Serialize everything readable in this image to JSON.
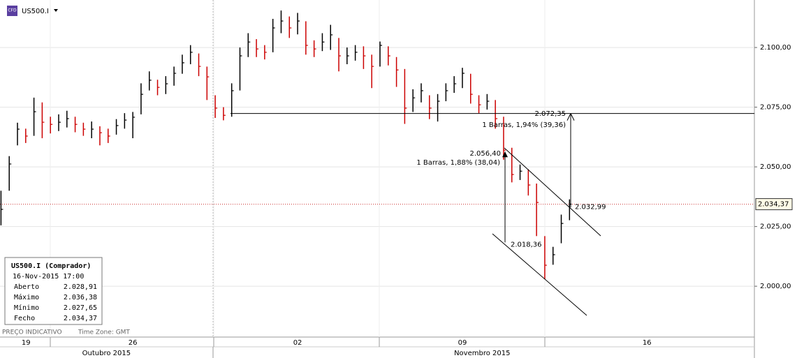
{
  "header": {
    "icon": "CFD",
    "symbol": "US500.I"
  },
  "footer": {
    "note": "PREÇO INDICATIVO",
    "timezone": "Time Zone: GMT"
  },
  "info_box": {
    "title": "US500.I (Comprador)",
    "date": "16-Nov-2015 17:00",
    "rows": [
      [
        "Aberto",
        "2.028,91"
      ],
      [
        "Máximo",
        "2.036,38"
      ],
      [
        "Mínimo",
        "2.027,65"
      ],
      [
        "Fecho",
        "2.034,37"
      ]
    ]
  },
  "chart_data": {
    "type": "ohlc",
    "x": [
      3.5,
      3.75,
      4,
      4.25,
      4.5,
      4.75,
      5,
      5.25,
      5.5,
      5.75,
      6,
      6.25,
      6.5,
      6.75,
      7,
      7.25,
      7.5,
      7.75,
      8,
      8.25,
      8.5,
      8.75,
      9,
      9.25,
      9.5,
      9.75,
      10,
      10.25,
      10.5,
      10.75,
      11,
      11.25,
      11.5,
      11.75,
      12,
      12.25,
      12.5,
      12.75,
      13,
      13.25,
      13.5,
      13.75,
      14,
      14.25,
      14.5,
      14.75,
      15,
      15.25,
      15.5,
      15.75,
      16,
      16.25,
      16.5,
      16.75,
      17,
      17.25,
      17.5,
      17.75,
      18,
      18.25,
      18.5,
      18.75,
      19,
      19.25,
      19.5,
      19.75,
      20,
      20.25,
      20.5,
      20.75
    ],
    "close": [
      2032.2,
      2051.2,
      2065.8,
      2062.9,
      2073.1,
      2068.7,
      2067.8,
      2068.7,
      2070.2,
      2067.8,
      2065.8,
      2065.8,
      2064.3,
      2062.9,
      2067.3,
      2069.6,
      2070.8,
      2080.4,
      2086.3,
      2083.3,
      2084.8,
      2089.2,
      2093.6,
      2098.0,
      2092.1,
      2087.7,
      2074.6,
      2071.6,
      2081.9,
      2096.5,
      2102.3,
      2099.4,
      2098.0,
      2108.2,
      2111.1,
      2108.2,
      2111.1,
      2100.9,
      2099.4,
      2102.3,
      2105.3,
      2096.5,
      2096.5,
      2098.0,
      2096.5,
      2092.1,
      2100.9,
      2096.5,
      2090.6,
      2074.6,
      2078.9,
      2081.9,
      2074.6,
      2077.5,
      2081.9,
      2084.8,
      2089.2,
      2080.4,
      2076.0,
      2077.5,
      2070.2,
      2057.0,
      2046.8,
      2048.2,
      2042.4,
      2035.1,
      2008.8,
      2013.2,
      2026.3,
      2034.37
    ],
    "high": [
      2040.0,
      2054.5,
      2068.5,
      2066.0,
      2079.0,
      2077.0,
      2071.0,
      2072.0,
      2073.5,
      2071.0,
      2068.5,
      2069.0,
      2067.0,
      2066.0,
      2070.0,
      2072.5,
      2073.0,
      2085.0,
      2090.0,
      2086.5,
      2088.0,
      2092.0,
      2097.0,
      2101.0,
      2097.5,
      2092.0,
      2080.0,
      2075.0,
      2085.0,
      2100.0,
      2106.0,
      2103.5,
      2101.0,
      2112.0,
      2115.5,
      2113.0,
      2114.5,
      2111.0,
      2103.0,
      2106.0,
      2109.5,
      2104.0,
      2100.0,
      2101.0,
      2100.5,
      2097.0,
      2102.5,
      2100.5,
      2096.0,
      2091.0,
      2082.5,
      2085.0,
      2080.0,
      2080.5,
      2085.0,
      2088.0,
      2091.5,
      2089.0,
      2080.0,
      2080.5,
      2078.0,
      2071.0,
      2058.0,
      2051.0,
      2049.0,
      2043.0,
      2021.0,
      2016.5,
      2030.0,
      2036.38
    ],
    "low": [
      2025.5,
      2040.0,
      2059.0,
      2060.0,
      2063.0,
      2062.0,
      2064.0,
      2065.0,
      2066.5,
      2064.5,
      2063.0,
      2062.0,
      2059.0,
      2060.0,
      2063.5,
      2066.0,
      2062.0,
      2072.0,
      2082.0,
      2080.0,
      2080.5,
      2084.0,
      2089.0,
      2093.0,
      2088.0,
      2078.0,
      2070.5,
      2069.5,
      2071.0,
      2082.0,
      2096.0,
      2096.0,
      2095.0,
      2098.0,
      2106.0,
      2104.0,
      2105.5,
      2097.0,
      2096.0,
      2098.5,
      2099.0,
      2090.0,
      2093.0,
      2094.5,
      2091.0,
      2083.0,
      2092.0,
      2092.5,
      2083.5,
      2068.0,
      2073.0,
      2077.0,
      2070.0,
      2069.0,
      2077.5,
      2081.0,
      2083.0,
      2076.5,
      2072.5,
      2074.0,
      2066.0,
      2053.0,
      2043.5,
      2044.5,
      2038.0,
      2021.0,
      2003.0,
      2009.0,
      2018.0,
      2027.65
    ],
    "up_color": "#000000",
    "down_color": "#cc0000",
    "xlim": [
      3.47,
      26.36
    ],
    "xticks": [
      {
        "value": 4.26,
        "label": "19"
      },
      {
        "value": 7.5,
        "label": "26"
      },
      {
        "value": 12.5,
        "label": "02"
      },
      {
        "value": 17.5,
        "label": "09"
      },
      {
        "value": 23.1,
        "label": "16"
      }
    ],
    "months": [
      {
        "value": 6.7,
        "label": "Outubro 2015"
      },
      {
        "value": 18.1,
        "label": "Novembro 2015"
      }
    ],
    "ylim": [
      1978.7,
      2119.9
    ],
    "yticks": [
      {
        "value": 2000,
        "label": "2.000,00"
      },
      {
        "value": 2025,
        "label": "2.025,00"
      },
      {
        "value": 2050,
        "label": "2.050,00"
      },
      {
        "value": 2075,
        "label": "2.075,00"
      },
      {
        "value": 2100,
        "label": "2.100,00"
      }
    ],
    "grid": true,
    "last_price": {
      "value": 2034.37,
      "label": "2.034,37"
    },
    "annotations": [
      {
        "value": 2072.35,
        "label": "2.072,35"
      },
      {
        "label": "1 Barras, 1,94% (39,36)"
      },
      {
        "value": 2056.4,
        "label": "2.056,40"
      },
      {
        "label": "1 Barras, 1,88% (38,04)"
      },
      {
        "value": 2018.36,
        "label": "2.018,36"
      },
      {
        "value": 2032.99,
        "label": "2.032,99"
      }
    ]
  }
}
